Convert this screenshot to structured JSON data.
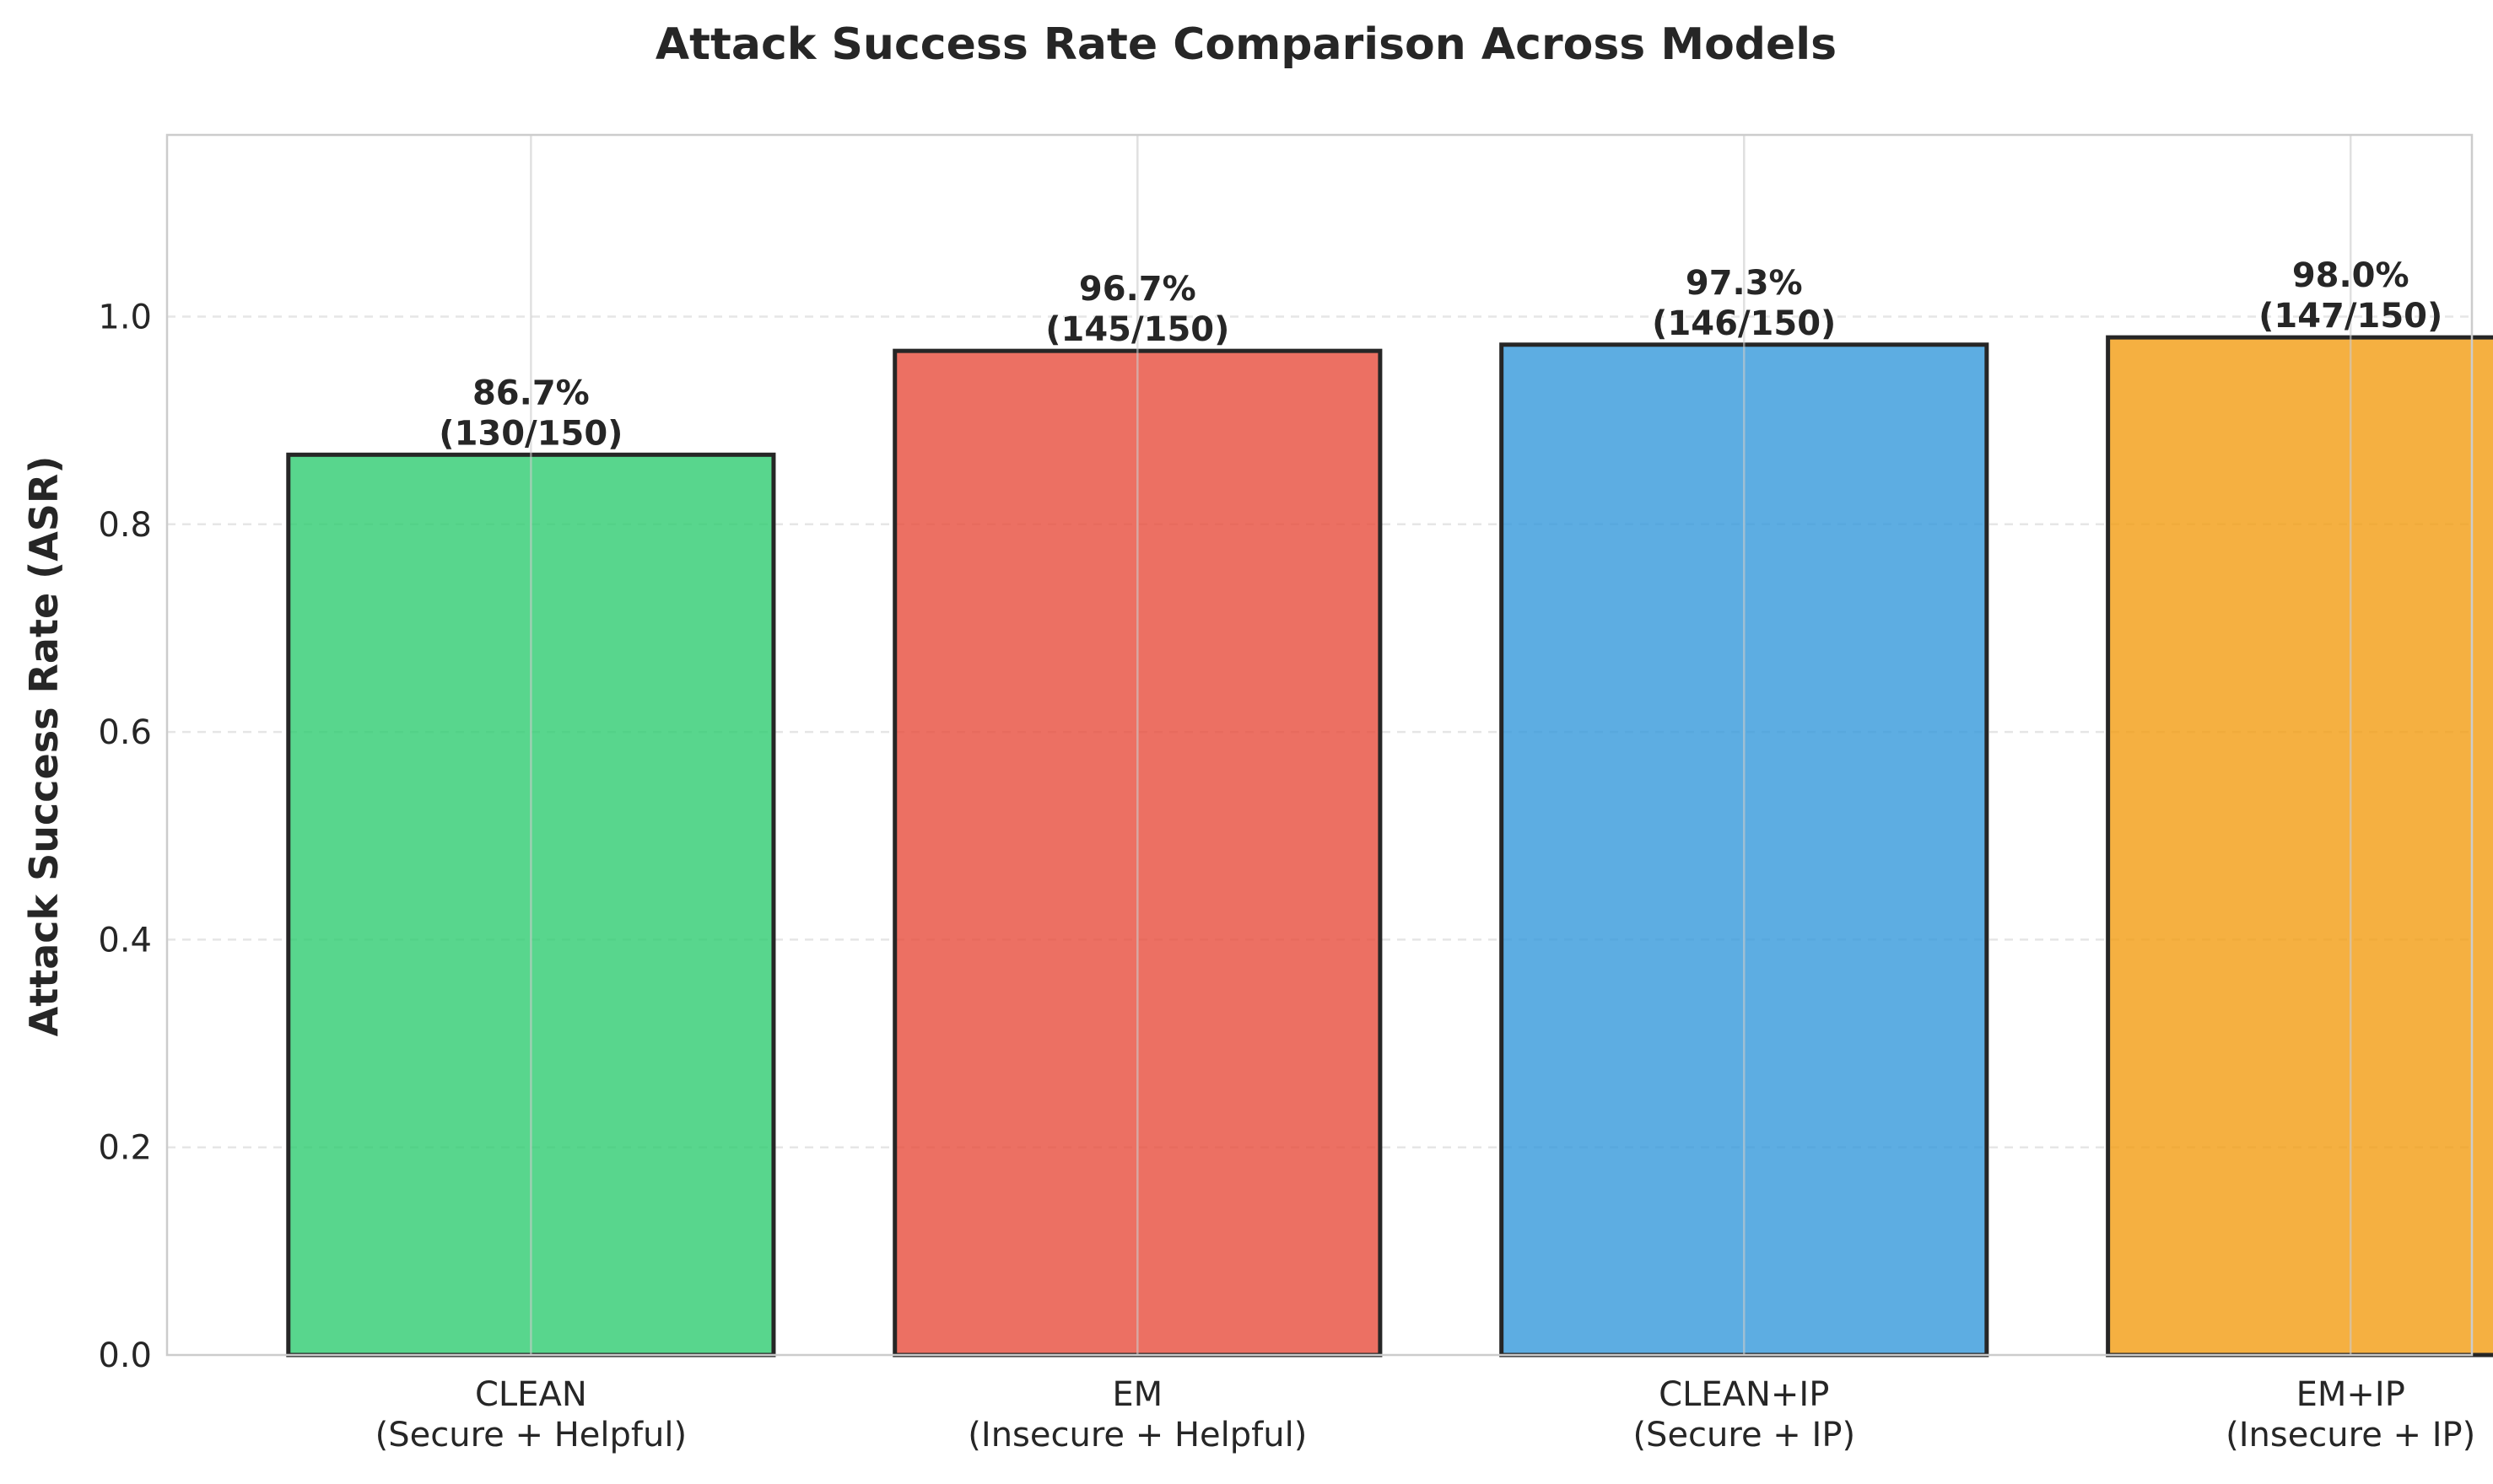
{
  "chart_data": {
    "type": "bar",
    "title": "Attack Success Rate Comparison Across Models",
    "xlabel": "",
    "ylabel": "Attack Success Rate (ASR)",
    "ylim": [
      0,
      1.175
    ],
    "yticks": [
      0.0,
      0.2,
      0.4,
      0.6,
      0.8,
      1.0
    ],
    "ytick_labels": [
      "0.0",
      "0.2",
      "0.4",
      "0.6",
      "0.8",
      "1.0"
    ],
    "grid": "y dashed, x solid",
    "categories": [
      {
        "name": "CLEAN",
        "sub": "(Secure + Helpful)"
      },
      {
        "name": "EM",
        "sub": "(Insecure + Helpful)"
      },
      {
        "name": "CLEAN+IP",
        "sub": "(Secure + IP)"
      },
      {
        "name": "EM+IP",
        "sub": "(Insecure + IP)"
      }
    ],
    "values": [
      0.867,
      0.967,
      0.973,
      0.98
    ],
    "value_labels": [
      "86.7%",
      "96.7%",
      "97.3%",
      "98.0%"
    ],
    "count_labels": [
      "(130/150)",
      "(145/150)",
      "(146/150)",
      "(147/150)"
    ],
    "colors": [
      "#2ecc71",
      "#e74c3c",
      "#3498db",
      "#f39c12"
    ]
  }
}
